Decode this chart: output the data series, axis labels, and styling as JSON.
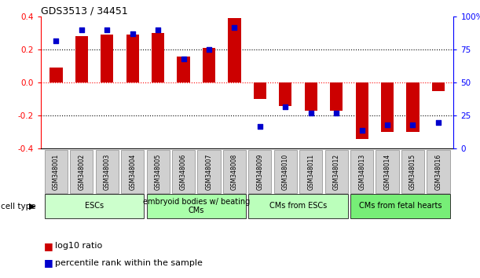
{
  "title": "GDS3513 / 34451",
  "samples": [
    "GSM348001",
    "GSM348002",
    "GSM348003",
    "GSM348004",
    "GSM348005",
    "GSM348006",
    "GSM348007",
    "GSM348008",
    "GSM348009",
    "GSM348010",
    "GSM348011",
    "GSM348012",
    "GSM348013",
    "GSM348014",
    "GSM348015",
    "GSM348016"
  ],
  "log10_ratio": [
    0.09,
    0.28,
    0.29,
    0.29,
    0.3,
    0.16,
    0.21,
    0.39,
    -0.1,
    -0.14,
    -0.17,
    -0.17,
    -0.34,
    -0.3,
    -0.3,
    -0.05
  ],
  "percentile_rank": [
    82,
    90,
    90,
    87,
    90,
    68,
    75,
    92,
    17,
    32,
    27,
    27,
    14,
    18,
    18,
    20
  ],
  "bar_color": "#cc0000",
  "point_color": "#0000cc",
  "ylim": [
    -0.4,
    0.4
  ],
  "y2lim": [
    0,
    100
  ],
  "yticks_left": [
    -0.4,
    -0.2,
    0.0,
    0.2,
    0.4
  ],
  "yticks_right": [
    0,
    25,
    50,
    75,
    100
  ],
  "hlines_black": [
    0.2,
    -0.2
  ],
  "hline_red": 0.0,
  "cell_type_groups": [
    {
      "label": "ESCs",
      "start": 0,
      "end": 3,
      "color": "#ccffcc"
    },
    {
      "label": "embryoid bodies w/ beating\nCMs",
      "start": 4,
      "end": 7,
      "color": "#aaffaa"
    },
    {
      "label": "CMs from ESCs",
      "start": 8,
      "end": 11,
      "color": "#bbffbb"
    },
    {
      "label": "CMs from fetal hearts",
      "start": 12,
      "end": 15,
      "color": "#77ee77"
    }
  ],
  "legend_red_label": "log10 ratio",
  "legend_blue_label": "percentile rank within the sample",
  "cell_type_label": "cell type",
  "bar_width": 0.5,
  "sample_box_color": "#d0d0d0",
  "title_fontsize": 9,
  "axis_fontsize": 7.5,
  "sample_fontsize": 5.5,
  "cell_fontsize": 7,
  "legend_fontsize": 8
}
